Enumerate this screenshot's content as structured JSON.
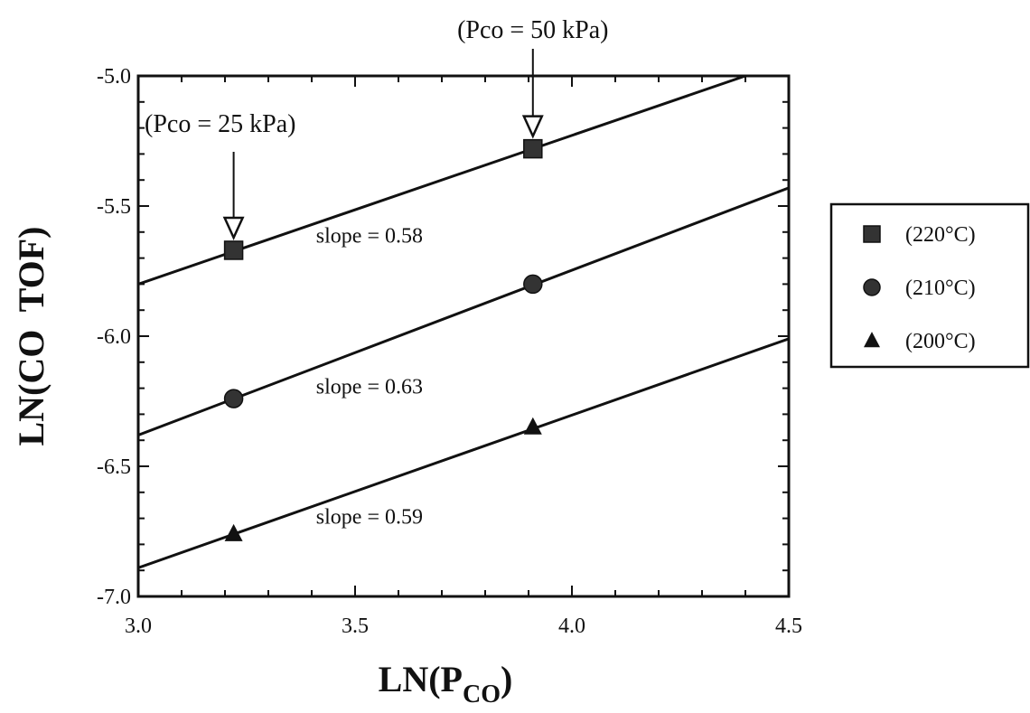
{
  "chart_data": {
    "type": "line",
    "xlabel_main": "LN(P",
    "xlabel_sub": "CO",
    "xlabel_end": ")",
    "ylabel": "LN(CO  TOF)",
    "xlim": [
      3.0,
      4.5
    ],
    "ylim": [
      -7.0,
      -5.0
    ],
    "xticks": [
      "3.0",
      "3.5",
      "4.0",
      "4.5"
    ],
    "yticks": [
      "-5.0",
      "-5.5",
      "-6.0",
      "-6.5",
      "-7.0"
    ],
    "grid": false,
    "legend_position": "right",
    "series": [
      {
        "name": "(220°C)",
        "marker": "square",
        "x": [
          3.22,
          3.91
        ],
        "y": [
          -5.67,
          -5.28
        ],
        "line_x": [
          3.0,
          4.4
        ],
        "line_y": [
          -5.8,
          -5.0
        ],
        "slope_label": "slope = 0.58"
      },
      {
        "name": "(210°C)",
        "marker": "circle",
        "x": [
          3.22,
          3.91
        ],
        "y": [
          -6.24,
          -5.8
        ],
        "line_x": [
          3.0,
          4.5
        ],
        "line_y": [
          -6.38,
          -5.43
        ],
        "slope_label": "slope = 0.63"
      },
      {
        "name": "(200°C)",
        "marker": "triangle",
        "x": [
          3.22,
          3.91
        ],
        "y": [
          -6.76,
          -6.35
        ],
        "line_x": [
          3.0,
          4.5
        ],
        "line_y": [
          -6.89,
          -6.01
        ],
        "slope_label": "slope = 0.59"
      }
    ],
    "annotations": [
      {
        "text": "(Pco = 25 kPa)",
        "arrow_x": 3.22
      },
      {
        "text": "(Pco = 50 kPa)",
        "arrow_x": 3.91
      }
    ]
  }
}
